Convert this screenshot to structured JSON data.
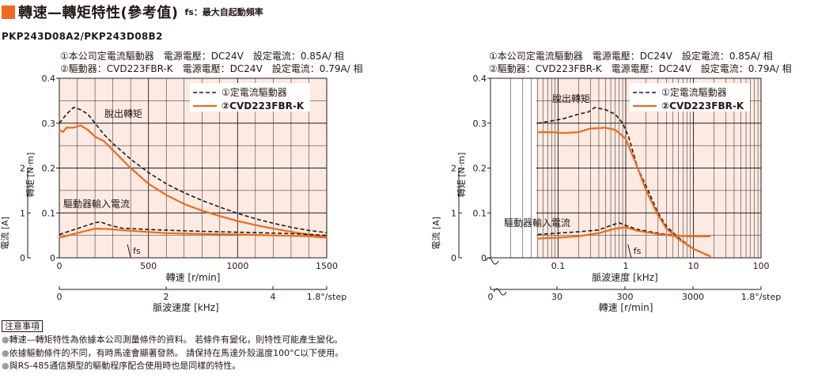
{
  "header": {
    "title": "轉速—轉矩特性(參考值)",
    "subtitle": "fs：最大自起動頻率",
    "accent_color": "#ee6a1e",
    "model": "PKP243D08A2/PKP243D08B2"
  },
  "colors": {
    "plot_bg": "#fdebe3",
    "driver1": "#231815",
    "driver2": "#ee6a1e"
  },
  "chart_data": [
    {
      "type": "line",
      "conditions": [
        "①本公司定電流驅動器　電源電壓：DC24V　設定電流：0.85A/ 相",
        "②驅動器：CVD223FBR-K　電源電壓：DC24V　設定電流：0.79A/ 相"
      ],
      "x_scale": "linear",
      "xlabel": "轉速 [r/min]",
      "xlim": [
        0,
        1500
      ],
      "x_ticks": [
        "0",
        "500",
        "1000",
        "1500"
      ],
      "x2label": "脈波速度 [kHz]",
      "x2_ticks": [
        "0",
        "2",
        "4"
      ],
      "x2_unit": "1.8°/step",
      "ylabel": "轉矩 [N·m]",
      "ylim": [
        0,
        0.4
      ],
      "y_ticks": [
        "0",
        "0.1",
        "0.2",
        "0.3",
        "0.4"
      ],
      "y2label": "電流 [A]",
      "y2_ticks": [
        "0",
        "1",
        "2"
      ],
      "legend": [
        "①定電流驅動器",
        "②CVD223FBR-K"
      ],
      "legend_position": "top-right",
      "annotations": [
        "脫出轉矩",
        "驅動器輸入電流",
        "fs"
      ],
      "fs_x": 400,
      "series": [
        {
          "name": "①定電流驅動器",
          "kind": "pullout",
          "style": "dashed",
          "points": [
            [
              0,
              0.3
            ],
            [
              40,
              0.32
            ],
            [
              80,
              0.335
            ],
            [
              120,
              0.33
            ],
            [
              160,
              0.32
            ],
            [
              200,
              0.3
            ],
            [
              250,
              0.275
            ],
            [
              300,
              0.255
            ],
            [
              400,
              0.22
            ],
            [
              500,
              0.19
            ],
            [
              600,
              0.165
            ],
            [
              700,
              0.145
            ],
            [
              800,
              0.128
            ],
            [
              900,
              0.113
            ],
            [
              1000,
              0.099
            ],
            [
              1100,
              0.087
            ],
            [
              1200,
              0.077
            ],
            [
              1300,
              0.068
            ],
            [
              1400,
              0.061
            ],
            [
              1500,
              0.056
            ]
          ]
        },
        {
          "name": "②CVD223FBR-K",
          "kind": "pullout",
          "style": "solid",
          "points": [
            [
              0,
              0.285
            ],
            [
              20,
              0.28
            ],
            [
              40,
              0.29
            ],
            [
              80,
              0.29
            ],
            [
              120,
              0.295
            ],
            [
              160,
              0.285
            ],
            [
              200,
              0.27
            ],
            [
              250,
              0.26
            ],
            [
              300,
              0.24
            ],
            [
              400,
              0.2
            ],
            [
              500,
              0.165
            ],
            [
              600,
              0.14
            ],
            [
              700,
              0.12
            ],
            [
              800,
              0.105
            ],
            [
              900,
              0.093
            ],
            [
              1000,
              0.082
            ],
            [
              1100,
              0.073
            ],
            [
              1200,
              0.065
            ],
            [
              1300,
              0.058
            ],
            [
              1400,
              0.052
            ],
            [
              1500,
              0.047
            ]
          ]
        },
        {
          "name": "①定電流驅動器",
          "kind": "input_current",
          "style": "dashed",
          "points": [
            [
              0,
              0.052
            ],
            [
              100,
              0.065
            ],
            [
              200,
              0.078
            ],
            [
              230,
              0.08
            ],
            [
              280,
              0.073
            ],
            [
              350,
              0.066
            ],
            [
              500,
              0.063
            ],
            [
              700,
              0.06
            ],
            [
              900,
              0.058
            ],
            [
              1100,
              0.056
            ],
            [
              1300,
              0.054
            ],
            [
              1500,
              0.05
            ]
          ]
        },
        {
          "name": "②CVD223FBR-K",
          "kind": "input_current",
          "style": "solid",
          "points": [
            [
              0,
              0.045
            ],
            [
              100,
              0.055
            ],
            [
              200,
              0.065
            ],
            [
              280,
              0.064
            ],
            [
              400,
              0.06
            ],
            [
              600,
              0.055
            ],
            [
              800,
              0.053
            ],
            [
              1000,
              0.052
            ],
            [
              1200,
              0.05
            ],
            [
              1400,
              0.048
            ],
            [
              1500,
              0.045
            ]
          ]
        }
      ]
    },
    {
      "type": "line",
      "conditions": [
        "①本公司定電流驅動器　電源電壓：DC24V　設定電流：0.85A/ 相",
        "②驅動器：CVD223FBR-K　電源電壓：DC24V　設定電流：0.79A/ 相"
      ],
      "x_scale": "log",
      "xlabel": "脈波速度 [kHz]",
      "xlim": [
        0.01,
        100
      ],
      "x_ticks": [
        "0.1",
        "1",
        "10",
        "100"
      ],
      "x2label": "轉速 [r/min]",
      "x2_ticks": [
        "0",
        "30",
        "300",
        "3000"
      ],
      "x2_unit": "1.8°/step",
      "ylabel": "轉矩 [N·m]",
      "ylim": [
        0,
        0.4
      ],
      "y_ticks": [
        "0",
        "0.1",
        "0.2",
        "0.3",
        "0.4"
      ],
      "y2label": "電流 [A]",
      "y2_ticks": [
        "0",
        "1",
        "2"
      ],
      "legend": [
        "①定電流驅動器",
        "②CVD223FBR-K"
      ],
      "legend_position": "top-right",
      "annotations": [
        "脫出轉矩",
        "驅動器輸入電流",
        "fs"
      ],
      "fs_x": 1.2,
      "series": [
        {
          "name": "①定電流驅動器",
          "kind": "pullout",
          "style": "dashed",
          "points": [
            [
              0.05,
              0.3
            ],
            [
              0.08,
              0.305
            ],
            [
              0.12,
              0.31
            ],
            [
              0.2,
              0.32
            ],
            [
              0.28,
              0.325
            ],
            [
              0.35,
              0.335
            ],
            [
              0.5,
              0.33
            ],
            [
              0.7,
              0.32
            ],
            [
              0.9,
              0.3
            ],
            [
              1.1,
              0.27
            ],
            [
              1.5,
              0.2
            ],
            [
              2,
              0.16
            ],
            [
              3,
              0.1
            ],
            [
              4,
              0.07
            ],
            [
              6,
              0.045
            ],
            [
              10,
              0.02
            ],
            [
              18,
              0.002
            ]
          ]
        },
        {
          "name": "②CVD223FBR-K",
          "kind": "pullout",
          "style": "solid",
          "points": [
            [
              0.05,
              0.28
            ],
            [
              0.08,
              0.28
            ],
            [
              0.12,
              0.278
            ],
            [
              0.2,
              0.28
            ],
            [
              0.3,
              0.288
            ],
            [
              0.5,
              0.29
            ],
            [
              0.7,
              0.285
            ],
            [
              1,
              0.265
            ],
            [
              1.5,
              0.2
            ],
            [
              2,
              0.15
            ],
            [
              3,
              0.095
            ],
            [
              4,
              0.065
            ],
            [
              6,
              0.042
            ],
            [
              10,
              0.02
            ],
            [
              18,
              0.003
            ]
          ]
        },
        {
          "name": "①定電流驅動器",
          "kind": "input_current",
          "style": "dashed",
          "points": [
            [
              0.05,
              0.052
            ],
            [
              0.1,
              0.055
            ],
            [
              0.2,
              0.058
            ],
            [
              0.4,
              0.062
            ],
            [
              0.6,
              0.072
            ],
            [
              0.8,
              0.078
            ],
            [
              1,
              0.072
            ],
            [
              1.5,
              0.063
            ],
            [
              3,
              0.055
            ],
            [
              5,
              0.05
            ],
            [
              8,
              0.048
            ],
            [
              18,
              0.048
            ]
          ]
        },
        {
          "name": "②CVD223FBR-K",
          "kind": "input_current",
          "style": "solid",
          "points": [
            [
              0.05,
              0.043
            ],
            [
              0.1,
              0.045
            ],
            [
              0.2,
              0.048
            ],
            [
              0.4,
              0.055
            ],
            [
              0.7,
              0.065
            ],
            [
              1,
              0.068
            ],
            [
              1.5,
              0.06
            ],
            [
              3,
              0.053
            ],
            [
              5,
              0.049
            ],
            [
              10,
              0.048
            ],
            [
              18,
              0.048
            ]
          ]
        }
      ]
    }
  ],
  "notes": {
    "title": "注意事項",
    "bullet": "●",
    "items": [
      "轉速—轉矩特性為依據本公司測量條件的資料。 若條件有變化，則特性可能產生變化。",
      "依據驅動條件的不同，有時馬達會顯著發熱。 請保持在馬達外殼溫度100°C以下使用。",
      "與RS-485通信類型的驅動程序配合使用時也是同樣的特性。"
    ]
  }
}
